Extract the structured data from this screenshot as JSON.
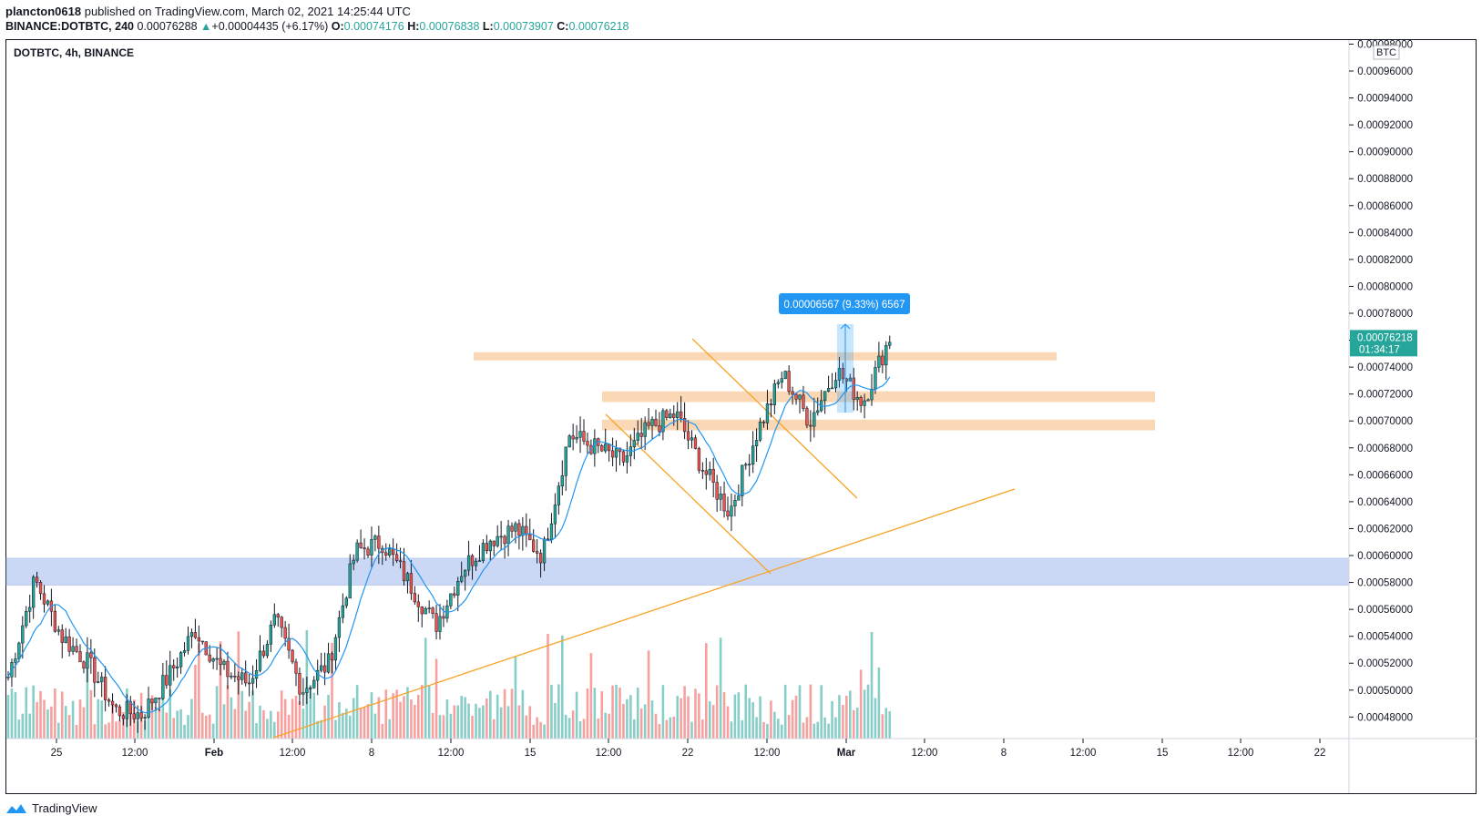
{
  "header": {
    "author": "plancton0618",
    "published": "published on TradingView.com, March 02, 2021 14:25:44 UTC",
    "symbol": "BINANCE:DOTBTC, 240",
    "last": "0.00076288",
    "arrow": "▲",
    "change": "+0.00004435 (+6.17%)",
    "o_label": "O:",
    "o": "0.00074176",
    "h_label": "H:",
    "h": "0.00076838",
    "l_label": "L:",
    "l": "0.00073907",
    "c_label": "C:",
    "c": "0.00076218"
  },
  "chart_data": {
    "type": "candlestick",
    "title": "DOTBTC, 4h, BINANCE",
    "currency": "BTC",
    "ylim": [
      0.00046,
      0.00098
    ],
    "y_ticks": [
      "0.00048000",
      "0.00050000",
      "0.00052000",
      "0.00054000",
      "0.00056000",
      "0.00058000",
      "0.00060000",
      "0.00062000",
      "0.00064000",
      "0.00066000",
      "0.00068000",
      "0.00070000",
      "0.00072000",
      "0.00074000",
      "0.00076000",
      "0.00078000",
      "0.00080000",
      "0.00082000",
      "0.00084000",
      "0.00086000",
      "0.00088000",
      "0.00090000",
      "0.00092000",
      "0.00094000",
      "0.00096000",
      "0.00098000"
    ],
    "x_ticks": [
      "25",
      "12:00",
      "Feb",
      "12:00",
      "8",
      "12:00",
      "15",
      "12:00",
      "22",
      "12:00",
      "Mar",
      "12:00",
      "8",
      "12:00",
      "15",
      "12:00",
      "22"
    ],
    "last_price": "0.00076218",
    "countdown": "01:34:17",
    "measure_label": "0.00006567 (9.33%) 6567",
    "zones": [
      {
        "name": "resistance-top",
        "from": 0.000745,
        "to": 0.000751
      },
      {
        "name": "resistance-mid",
        "from": 0.000714,
        "to": 0.000722
      },
      {
        "name": "resistance-low",
        "from": 0.000693,
        "to": 0.000701
      },
      {
        "name": "support-blue",
        "from": 0.000578,
        "to": 0.000598
      }
    ],
    "colors": {
      "up": "#26a69a",
      "down": "#ef5350",
      "ma": "#2196f3",
      "zone": "#f9cb9c",
      "support": "#b3c7f2",
      "trend": "#f7a325",
      "label": "#2196f3"
    },
    "candle_count": 246,
    "series_keypoints": [
      {
        "x": "Jan 24",
        "close": 0.00051
      },
      {
        "x": "Jan 24 12:00",
        "close": 0.000582
      },
      {
        "x": "Jan 25",
        "close": 0.00054
      },
      {
        "x": "Jan 27",
        "close": 0.00052
      },
      {
        "x": "Jan 30",
        "close": 0.000485
      },
      {
        "x": "Feb 1",
        "close": 0.000482
      },
      {
        "x": "Feb 2",
        "close": 0.00051
      },
      {
        "x": "Feb 3",
        "close": 0.000545
      },
      {
        "x": "Feb 5",
        "close": 0.000515
      },
      {
        "x": "Feb 6",
        "close": 0.000505
      },
      {
        "x": "Feb 7",
        "close": 0.000552
      },
      {
        "x": "Feb 8",
        "close": 0.0005
      },
      {
        "x": "Feb 10",
        "close": 0.00052
      },
      {
        "x": "Feb 12",
        "close": 0.000603
      },
      {
        "x": "Feb 13",
        "close": 0.00061
      },
      {
        "x": "Feb 14",
        "close": 0.00058
      },
      {
        "x": "Feb 15",
        "close": 0.000548
      },
      {
        "x": "Feb 16",
        "close": 0.00059
      },
      {
        "x": "Feb 17",
        "close": 0.000612
      },
      {
        "x": "Feb 18",
        "close": 0.00062
      },
      {
        "x": "Feb 19",
        "close": 0.0006
      },
      {
        "x": "Feb 20",
        "close": 0.00069
      },
      {
        "x": "Feb 21",
        "close": 0.00068
      },
      {
        "x": "Feb 22",
        "close": 0.00067
      },
      {
        "x": "Feb 23",
        "close": 0.000695
      },
      {
        "x": "Feb 24",
        "close": 0.000705
      },
      {
        "x": "Feb 25",
        "close": 0.000665
      },
      {
        "x": "Feb 26",
        "close": 0.000632
      },
      {
        "x": "Feb 27",
        "close": 0.00069
      },
      {
        "x": "Feb 28",
        "close": 0.000735
      },
      {
        "x": "Feb 28 12:00",
        "close": 0.0007
      },
      {
        "x": "Mar 1",
        "close": 0.000738
      },
      {
        "x": "Mar 1 12:00",
        "close": 0.000714
      },
      {
        "x": "Mar 2",
        "close": 0.000762
      }
    ]
  }
}
